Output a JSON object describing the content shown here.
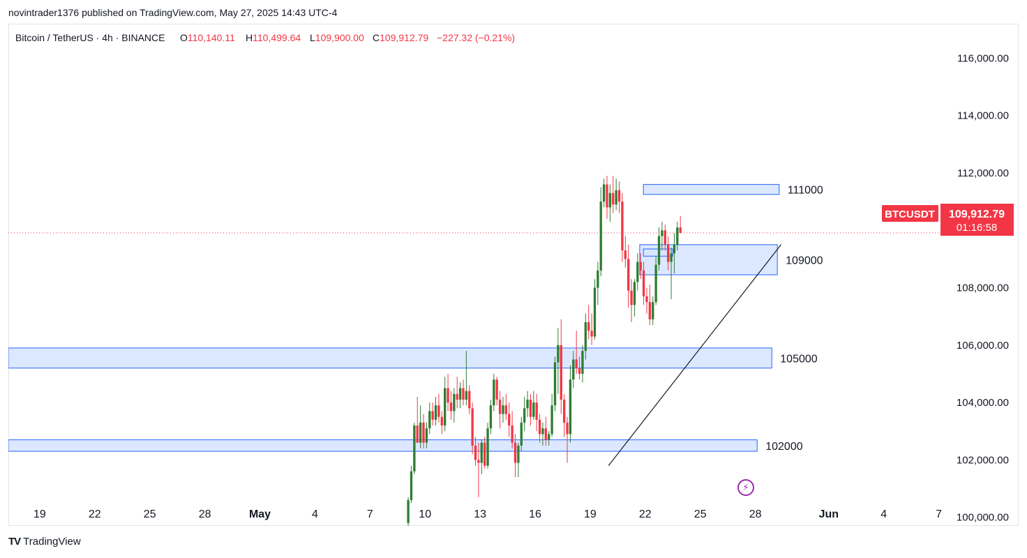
{
  "header": {
    "published_line": "novintrader1376 published on TradingView.com, May 27, 2025 14:43 UTC-4"
  },
  "legend": {
    "symbol": "Bitcoin / TetherUS · 4h · BINANCE",
    "open_label": "O",
    "open": "110,140.11",
    "high_label": "H",
    "high": "110,499.64",
    "low_label": "L",
    "low": "109,900.00",
    "close_label": "C",
    "close": "109,912.79",
    "change": "−227.32 (−0.21%)"
  },
  "price_tag": {
    "ticker": "BTCUSDT",
    "price": "109,912.79",
    "countdown": "01:16:58"
  },
  "footer": {
    "brand_mark": "TV",
    "brand": "TradingView"
  },
  "colors": {
    "up": "#26a69a",
    "up_body": "#2e7d32",
    "down": "#f23645",
    "zone_fill": "#d6e4ff",
    "zone_stroke": "#2962ff"
  },
  "chart_data": {
    "type": "candlestick",
    "title": "Bitcoin / TetherUS · 4h · BINANCE",
    "ylim": [
      99700,
      117200
    ],
    "y_ticks": [
      100000,
      102000,
      104000,
      106000,
      108000,
      110000,
      112000,
      114000,
      116000
    ],
    "y_tick_labels": [
      "100,000.00",
      "102,000.00",
      "104,000.00",
      "106,000.00",
      "108,000.00",
      "110,000.00",
      "112,000.00",
      "114,000.00",
      "116,000.00"
    ],
    "x_axis": {
      "labels": [
        "19",
        "22",
        "25",
        "28",
        "May",
        "4",
        "7",
        "10",
        "13",
        "16",
        "19",
        "22",
        "25",
        "28",
        "Jun",
        "4",
        "7"
      ],
      "bold": [
        "May",
        "Jun"
      ],
      "day_index": [
        -12,
        -9,
        -6,
        -3,
        0,
        3,
        6,
        9,
        12,
        15,
        18,
        21,
        24,
        27,
        31,
        34,
        37
      ]
    },
    "last_price": 109912.79,
    "zones": [
      {
        "label": "111000",
        "low": 111250,
        "high": 111600,
        "day_start": 20.9,
        "day_end": 28.3
      },
      {
        "label": "109000",
        "low": 108450,
        "high": 109500,
        "day_start": 20.7,
        "day_end": 28.2
      },
      {
        "label": "",
        "low": 109100,
        "high": 109350,
        "day_start": 20.9,
        "day_end": 22.5
      },
      {
        "label": "105000",
        "low": 105200,
        "high": 105900,
        "day_start": -14.6,
        "day_end": 27.9
      },
      {
        "label": "102000",
        "low": 102300,
        "high": 102700,
        "day_start": -14.6,
        "day_end": 27.1
      }
    ],
    "trendline": {
      "from": {
        "day": 19.0,
        "price": 101800
      },
      "to": {
        "day": 28.4,
        "price": 109500
      }
    },
    "candle_start_day": 8.0,
    "candles_per_day": 6,
    "candles": [
      [
        99800,
        100700,
        99700,
        100600
      ],
      [
        100600,
        101800,
        100500,
        101600
      ],
      [
        101600,
        103300,
        101500,
        103200
      ],
      [
        103200,
        104200,
        102600,
        102600
      ],
      [
        102600,
        103900,
        102400,
        103300
      ],
      [
        103300,
        103600,
        102400,
        102600
      ],
      [
        102600,
        103300,
        102400,
        103100
      ],
      [
        103100,
        104000,
        102900,
        103700
      ],
      [
        103700,
        104000,
        103200,
        103400
      ],
      [
        103400,
        104200,
        103200,
        103900
      ],
      [
        103900,
        104300,
        103300,
        103500
      ],
      [
        103500,
        103700,
        102900,
        103200
      ],
      [
        103200,
        104900,
        103000,
        104500
      ],
      [
        104500,
        105000,
        103700,
        104000
      ],
      [
        104000,
        104400,
        103400,
        103700
      ],
      [
        103700,
        104500,
        103300,
        104300
      ],
      [
        104300,
        104900,
        103800,
        104100
      ],
      [
        104100,
        104700,
        103800,
        104500
      ],
      [
        104500,
        104800,
        103900,
        104100
      ],
      [
        104100,
        105800,
        103900,
        104400
      ],
      [
        104400,
        104600,
        103600,
        103800
      ],
      [
        103800,
        104000,
        102200,
        102500
      ],
      [
        102500,
        102800,
        101800,
        102000
      ],
      [
        102000,
        102600,
        100700,
        101900
      ],
      [
        101900,
        102700,
        101500,
        102600
      ],
      [
        102600,
        102800,
        101700,
        101800
      ],
      [
        101800,
        103300,
        101700,
        103100
      ],
      [
        103100,
        104100,
        102900,
        103900
      ],
      [
        103900,
        105000,
        103700,
        104800
      ],
      [
        104800,
        104900,
        103900,
        104100
      ],
      [
        104100,
        104400,
        103100,
        103600
      ],
      [
        103600,
        104200,
        103300,
        103900
      ],
      [
        103900,
        104300,
        103400,
        103600
      ],
      [
        103600,
        104000,
        102800,
        103200
      ],
      [
        103200,
        103700,
        102400,
        102600
      ],
      [
        102600,
        102900,
        101400,
        101900
      ],
      [
        101900,
        102600,
        101400,
        102500
      ],
      [
        102500,
        103500,
        102300,
        103300
      ],
      [
        103300,
        104200,
        103000,
        103800
      ],
      [
        103800,
        104400,
        103500,
        104100
      ],
      [
        104100,
        104300,
        103200,
        103500
      ],
      [
        103500,
        104400,
        103400,
        104000
      ],
      [
        104000,
        104300,
        103000,
        103400
      ],
      [
        103400,
        103600,
        102600,
        102900
      ],
      [
        102900,
        103300,
        102500,
        103100
      ],
      [
        103100,
        103500,
        102500,
        102700
      ],
      [
        102700,
        103000,
        102500,
        102900
      ],
      [
        102900,
        104300,
        102800,
        103900
      ],
      [
        103900,
        105600,
        103700,
        105400
      ],
      [
        105400,
        106600,
        104300,
        106000
      ],
      [
        106000,
        106900,
        103600,
        104100
      ],
      [
        104100,
        104300,
        102800,
        103300
      ],
      [
        103300,
        103500,
        101900,
        102900
      ],
      [
        102900,
        105300,
        102600,
        104800
      ],
      [
        104800,
        105800,
        104500,
        105500
      ],
      [
        105500,
        106500,
        105000,
        105200
      ],
      [
        105200,
        105600,
        104800,
        105000
      ],
      [
        105000,
        106000,
        104700,
        105800
      ],
      [
        105800,
        107100,
        105500,
        106800
      ],
      [
        106800,
        107400,
        106200,
        106500
      ],
      [
        106500,
        107100,
        106000,
        106300
      ],
      [
        106300,
        108300,
        106200,
        108000
      ],
      [
        108000,
        108900,
        107400,
        108600
      ],
      [
        108600,
        111500,
        108400,
        111000
      ],
      [
        111000,
        111800,
        110800,
        111600
      ],
      [
        111600,
        111900,
        110400,
        110800
      ],
      [
        110800,
        111600,
        110300,
        111300
      ],
      [
        111300,
        111900,
        110600,
        110900
      ],
      [
        110900,
        111800,
        110700,
        111400
      ],
      [
        111400,
        111700,
        110600,
        111000
      ],
      [
        111000,
        111300,
        108900,
        109300
      ],
      [
        109300,
        109800,
        108700,
        109000
      ],
      [
        109000,
        109500,
        107300,
        107900
      ],
      [
        107900,
        108300,
        106800,
        107400
      ],
      [
        107400,
        108300,
        107000,
        108200
      ],
      [
        108200,
        109200,
        107900,
        108900
      ],
      [
        108900,
        109200,
        108300,
        108600
      ],
      [
        108600,
        108900,
        107400,
        107700
      ],
      [
        107700,
        108000,
        107100,
        107500
      ],
      [
        107500,
        108100,
        106700,
        106900
      ],
      [
        106900,
        107700,
        106700,
        107500
      ],
      [
        107500,
        109100,
        107400,
        108800
      ],
      [
        108800,
        110100,
        108600,
        109800
      ],
      [
        109800,
        110300,
        109300,
        110000
      ],
      [
        110000,
        110200,
        109300,
        109500
      ],
      [
        109500,
        109800,
        108600,
        108900
      ],
      [
        108900,
        109400,
        107600,
        109200
      ],
      [
        109200,
        109900,
        108500,
        109500
      ],
      [
        109500,
        110300,
        109300,
        110100
      ],
      [
        110100,
        110500,
        109900,
        109913
      ]
    ]
  }
}
